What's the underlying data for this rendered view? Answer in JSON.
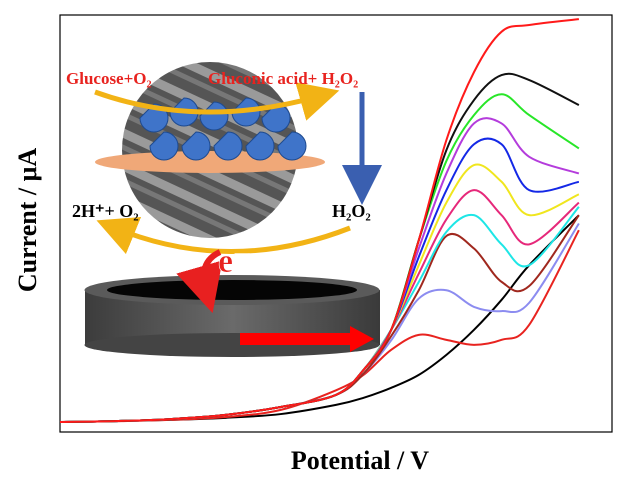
{
  "chart_data": {
    "type": "line",
    "y_label": "Current / μA",
    "x_label": "Potential / V",
    "xlim": [
      0,
      100
    ],
    "ylim": [
      0,
      100
    ],
    "x": [
      0,
      10,
      20,
      30,
      40,
      50,
      55,
      60,
      65,
      70,
      75,
      80,
      85,
      94
    ],
    "series": [
      {
        "color": "#000000",
        "values": [
          2.4,
          2.6,
          2.9,
          3.4,
          4.3,
          6.5,
          8.2,
          10.6,
          13.7,
          18.5,
          24.5,
          31.7,
          40,
          52
        ]
      },
      {
        "color": "#e8231f",
        "values": [
          2.4,
          2.6,
          2.9,
          3.6,
          5.3,
          10,
          13.7,
          19.7,
          23.3,
          22.1,
          20.9,
          22.1,
          25.7,
          48.4
        ]
      },
      {
        "color": "#8c8cf0",
        "values": [
          2.4,
          2.6,
          3.1,
          4.1,
          6,
          8.9,
          14,
          22,
          32,
          34,
          30,
          29,
          31,
          50
        ]
      },
      {
        "color": "#a0281e",
        "values": [
          2.4,
          2.6,
          3.1,
          4.1,
          6,
          8.9,
          14,
          23,
          34,
          47,
          44,
          36,
          35,
          52
        ]
      },
      {
        "color": "#1ee6e6",
        "values": [
          2.4,
          2.6,
          3.1,
          4.1,
          6,
          8.9,
          14.9,
          24.5,
          36,
          48,
          52,
          45,
          40,
          54
        ]
      },
      {
        "color": "#e6287a",
        "values": [
          2.4,
          2.6,
          3.1,
          4.1,
          6,
          8.9,
          14.9,
          24.5,
          38,
          51,
          58,
          52,
          45,
          55
        ]
      },
      {
        "color": "#f0e61e",
        "values": [
          2.4,
          2.6,
          3.1,
          4.1,
          6,
          8.9,
          14.9,
          24.5,
          40,
          55,
          64,
          60,
          52,
          57
        ]
      },
      {
        "color": "#1428e6",
        "values": [
          2.4,
          2.6,
          3.1,
          4.1,
          6,
          8.9,
          14.9,
          24.5,
          42,
          58,
          69,
          69,
          58,
          60
        ]
      },
      {
        "color": "#b43cdc",
        "values": [
          2.4,
          2.6,
          3.1,
          4.1,
          6,
          8.9,
          14.9,
          24.5,
          44,
          62,
          74,
          74,
          66,
          62
        ]
      },
      {
        "color": "#28e628",
        "values": [
          2.4,
          2.6,
          3.1,
          4.1,
          6,
          8.9,
          14.9,
          24.5,
          46,
          65,
          76,
          81,
          76,
          68
        ]
      },
      {
        "color": "#111111",
        "values": [
          2.4,
          2.6,
          3.1,
          4.1,
          6,
          8.9,
          14.9,
          24.5,
          46,
          67.6,
          79.6,
          85.6,
          84.4,
          78.4
        ]
      },
      {
        "color": "#ff1a1a",
        "values": [
          2.4,
          2.6,
          3.1,
          4.1,
          6,
          8.9,
          14.9,
          24.5,
          46,
          70,
          86.3,
          96,
          97.6,
          99
        ]
      }
    ]
  },
  "inset": {
    "substrate": "Glucose+O₂",
    "product": "Gluconic acid+ H₂O₂",
    "regenerated": "2H⁺+ O₂",
    "peroxide": "H₂O₂",
    "electron": "e⁻"
  }
}
